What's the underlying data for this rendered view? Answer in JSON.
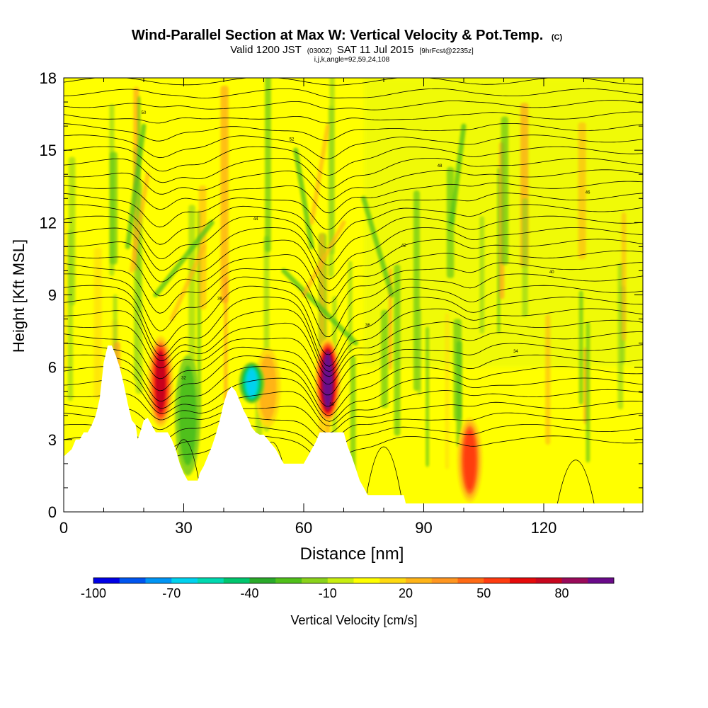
{
  "chart_data": {
    "type": "heatmap",
    "title": "Wind-Parallel Section at Max W: Vertical Velocity & Pot.Temp.",
    "title_mark": "(C)",
    "subtitle": {
      "prefix": "Valid 1200 JST",
      "small1": "(0300Z)",
      "middle": "SAT 11 Jul 2015",
      "small2": "[9hrFcst@2235z]"
    },
    "subsubtitle": "i,j,k,angle=92,59,24,108",
    "xlabel": "Distance [nm]",
    "ylabel": "Height [Kft MSL]",
    "xlim": [
      0,
      145
    ],
    "ylim": [
      0,
      18
    ],
    "xticks": [
      "0",
      "30",
      "60",
      "90",
      "120"
    ],
    "yticks": [
      "0",
      "3",
      "6",
      "9",
      "12",
      "15",
      "18"
    ],
    "colorbar": {
      "label": "Vertical Velocity [cm/s]",
      "range": [
        -100,
        100
      ],
      "tick_labels": [
        "-100",
        "-70",
        "-40",
        "-10",
        "20",
        "50",
        "80"
      ],
      "colors": [
        "#0000e6",
        "#0055f0",
        "#0095f5",
        "#00d2ef",
        "#00d9b0",
        "#00c66e",
        "#2aaa2a",
        "#50c01a",
        "#8ad31b",
        "#c8ee10",
        "#ffff00",
        "#ffda10",
        "#ffb418",
        "#ff9620",
        "#ff6a14",
        "#ff3c10",
        "#e60a0a",
        "#c8061e",
        "#9a0a5a",
        "#6a0a8a"
      ]
    },
    "updrafts": [
      {
        "x": 24.2,
        "bottom": 3.5,
        "top": 7.3,
        "peak_cms": 70
      },
      {
        "x": 66.0,
        "bottom": 3.7,
        "top": 7.2,
        "peak_cms": 95
      },
      {
        "x": 101.5,
        "bottom": 0.4,
        "top": 3.9,
        "peak_cms": 65
      },
      {
        "x": 51.0,
        "bottom": 3.5,
        "top": 6.8,
        "peak_cms": 30
      }
    ],
    "downdrafts": [
      {
        "x": 47.0,
        "bottom": 4.5,
        "top": 6.2,
        "peak_cms": -70
      },
      {
        "x": 31.0,
        "bottom": 1.5,
        "top": 6.5,
        "peak_cms": -30
      }
    ],
    "terrain_kft": [
      [
        0,
        2.3
      ],
      [
        2,
        2.6
      ],
      [
        3,
        3.0
      ],
      [
        4,
        3.0
      ],
      [
        5,
        3.3
      ],
      [
        6,
        3.3
      ],
      [
        7,
        3.6
      ],
      [
        8,
        4.0
      ],
      [
        9,
        4.7
      ],
      [
        10,
        6.2
      ],
      [
        11,
        6.9
      ],
      [
        12,
        6.9
      ],
      [
        13,
        6.5
      ],
      [
        14,
        6.0
      ],
      [
        15,
        5.3
      ],
      [
        16,
        4.5
      ],
      [
        17,
        3.8
      ],
      [
        18,
        3.6
      ],
      [
        18.5,
        3.0
      ],
      [
        19.5,
        3.5
      ],
      [
        20,
        3.8
      ],
      [
        21,
        3.9
      ],
      [
        22,
        3.6
      ],
      [
        23,
        3.3
      ],
      [
        26,
        3.3
      ],
      [
        27,
        3.0
      ],
      [
        28,
        2.6
      ],
      [
        29,
        2.0
      ],
      [
        30,
        1.6
      ],
      [
        31,
        1.3
      ],
      [
        33.5,
        1.3
      ],
      [
        34,
        1.6
      ],
      [
        35,
        1.9
      ],
      [
        36,
        2.3
      ],
      [
        37,
        2.7
      ],
      [
        38,
        3.2
      ],
      [
        39,
        3.8
      ],
      [
        40,
        4.5
      ],
      [
        41,
        5.0
      ],
      [
        42,
        5.2
      ],
      [
        43,
        5.0
      ],
      [
        44,
        4.6
      ],
      [
        45,
        4.2
      ],
      [
        46,
        3.9
      ],
      [
        47,
        3.5
      ],
      [
        48,
        3.3
      ],
      [
        49,
        3.2
      ],
      [
        50,
        3.2
      ],
      [
        51,
        3.0
      ],
      [
        52,
        2.8
      ],
      [
        53,
        2.6
      ],
      [
        54,
        2.3
      ],
      [
        55,
        2.0
      ],
      [
        56,
        2.0
      ],
      [
        60,
        2.0
      ],
      [
        61,
        2.3
      ],
      [
        62,
        2.6
      ],
      [
        63,
        2.9
      ],
      [
        64,
        3.3
      ],
      [
        70,
        3.3
      ],
      [
        71,
        2.7
      ],
      [
        72,
        2.3
      ],
      [
        73,
        1.8
      ],
      [
        74,
        1.3
      ],
      [
        75,
        1.0
      ],
      [
        76,
        0.7
      ],
      [
        85,
        0.7
      ],
      [
        85.5,
        0.35
      ],
      [
        145,
        0.35
      ]
    ],
    "theta_labels": [
      "50",
      "52",
      "48",
      "46",
      "44",
      "42",
      "40",
      "38",
      "36",
      "34",
      "32",
      "30"
    ]
  }
}
